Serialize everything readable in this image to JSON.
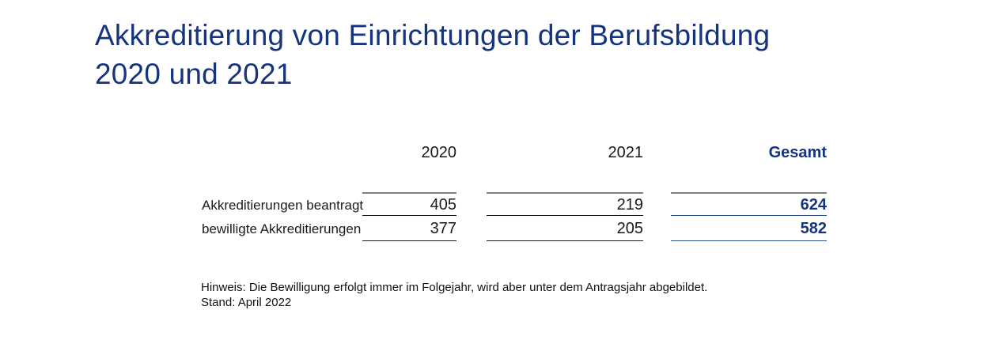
{
  "colors": {
    "brand_blue": "#16347d",
    "accent_line_blue": "#31508d",
    "gray_rule": "#7f7f7f",
    "dark_rule": "#1a1a1a",
    "text": "#1a1a1a",
    "background": "#ffffff"
  },
  "title": {
    "text": "Akkreditierung von Einrichtungen der Berufsbildung 2020 und 2021",
    "lines": [
      "Akkreditierung von Einrichtungen der Berufsbildung",
      "2020 und 2021"
    ]
  },
  "table": {
    "column_headers": [
      "2020",
      "2021",
      "Gesamt"
    ],
    "rows": [
      {
        "label": "Akkreditierungen beantragt",
        "y2020": "405",
        "y2021": "219",
        "gesamt": "624"
      },
      {
        "label": "bewilligte Akkreditierungen",
        "y2020": "377",
        "y2021": "205",
        "gesamt": "582"
      }
    ]
  },
  "footnotes": {
    "hinweis": "Hinweis: Die Bewilligung erfolgt immer im Folgejahr, wird aber unter dem Antragsjahr abgebildet.",
    "stand": "Stand: April 2022"
  },
  "chart_data": {
    "type": "table",
    "title": "Akkreditierung von Einrichtungen der Berufsbildung 2020 und 2021",
    "columns": [
      "",
      "2020",
      "2021",
      "Gesamt"
    ],
    "rows": [
      [
        "Akkreditierungen beantragt",
        405,
        219,
        624
      ],
      [
        "bewilligte Akkreditierungen",
        377,
        205,
        582
      ]
    ],
    "notes": [
      "Hinweis: Die Bewilligung erfolgt immer im Folgejahr, wird aber unter dem Antragsjahr abgebildet.",
      "Stand: April 2022"
    ]
  }
}
